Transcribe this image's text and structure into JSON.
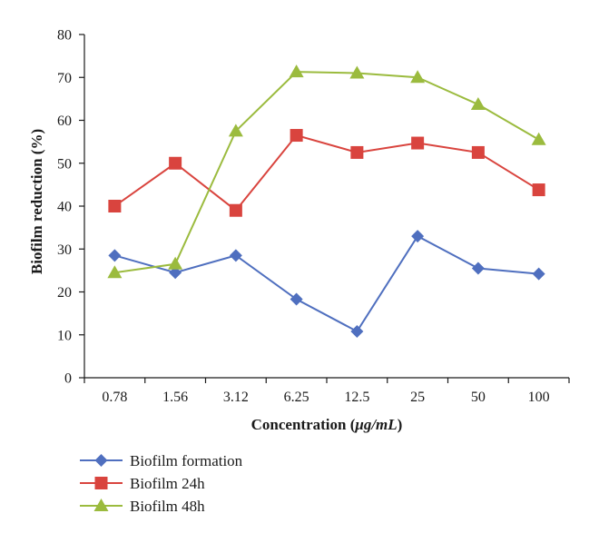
{
  "chart_data": {
    "type": "line",
    "xlabel_prefix": "Concentration (",
    "xlabel_unit": "μg/mL",
    "xlabel_suffix": ")",
    "ylabel": "Biofilm reduction (%)",
    "categories": [
      "0.78",
      "1.56",
      "3.12",
      "6.25",
      "12.5",
      "25",
      "50",
      "100"
    ],
    "ylim": [
      0,
      80
    ],
    "yticks": [
      0,
      10,
      20,
      30,
      40,
      50,
      60,
      70,
      80
    ],
    "grid": false,
    "legend_position": "bottom-left",
    "series": [
      {
        "name": "Biofilm formation",
        "marker": "diamond",
        "color": "#4f6fbf",
        "values": [
          28.5,
          24.5,
          28.5,
          18.3,
          10.8,
          33.0,
          25.5,
          24.2
        ]
      },
      {
        "name": "Biofilm 24h",
        "marker": "square",
        "color": "#d9443e",
        "values": [
          40.0,
          50.0,
          39.0,
          56.5,
          52.5,
          54.7,
          52.5,
          43.8
        ]
      },
      {
        "name": "Biofilm 48h",
        "marker": "triangle",
        "color": "#9bbb3e",
        "values": [
          24.5,
          26.5,
          57.5,
          71.3,
          71.0,
          70.0,
          63.7,
          55.5
        ]
      }
    ]
  }
}
